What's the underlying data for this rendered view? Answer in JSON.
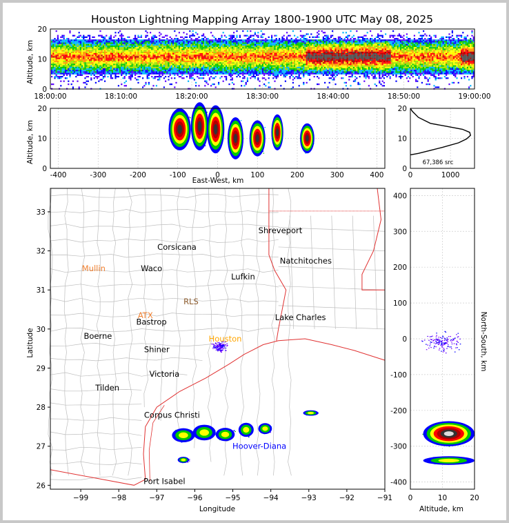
{
  "title": "Houston Lightning Mapping Array 1800-1900 UTC May 08, 2025",
  "colors": {
    "border": "#c8c8c8",
    "axis": "#000000",
    "state_line": "#e03030",
    "county_line": "#b4b4b4"
  },
  "chart_data": [
    {
      "id": "time-height",
      "type": "heatmap",
      "ylabel": "Altitude, km",
      "ylim": [
        0,
        20
      ],
      "yticks": [
        "0",
        "10",
        "20"
      ],
      "xticks": [
        "18:00:00",
        "18:10:00",
        "18:20:00",
        "18:30:00",
        "18:40:00",
        "18:50:00",
        "19:00:00"
      ],
      "xlim": [
        "18:00:00",
        "19:00:00"
      ],
      "band_altitude_km": [
        6,
        16
      ],
      "densest_intervals": [
        [
          "18:36:00",
          "18:48:00"
        ],
        [
          "18:58:00",
          "19:00:00"
        ]
      ]
    },
    {
      "id": "ew-altitude",
      "type": "heatmap",
      "xlabel": "East-West, km",
      "ylabel": "Altitude, km",
      "xlim": [
        -420,
        420
      ],
      "ylim": [
        0,
        20
      ],
      "xticks": [
        "-400",
        "-300",
        "-200",
        "-100",
        "0",
        "100",
        "200",
        "300",
        "400"
      ],
      "yticks": [
        "0",
        "10",
        "20"
      ],
      "cells": [
        {
          "x": -95,
          "z": 13,
          "rx": 28,
          "rz": 7
        },
        {
          "x": -45,
          "z": 14,
          "rx": 22,
          "rz": 8
        },
        {
          "x": -5,
          "z": 13,
          "rx": 22,
          "rz": 8
        },
        {
          "x": 45,
          "z": 10,
          "rx": 20,
          "rz": 7
        },
        {
          "x": 100,
          "z": 10,
          "rx": 20,
          "rz": 6
        },
        {
          "x": 150,
          "z": 12,
          "rx": 15,
          "rz": 6
        },
        {
          "x": 225,
          "z": 10,
          "rx": 18,
          "rz": 5
        }
      ]
    },
    {
      "id": "altitude-histogram",
      "type": "line",
      "annotation": "67,386 src",
      "xlim": [
        0,
        1600
      ],
      "ylim": [
        0,
        20
      ],
      "xticks": [
        "0",
        "1000"
      ],
      "yticks": [
        "0",
        "10",
        "20"
      ],
      "points": [
        [
          0,
          4.5
        ],
        [
          200,
          5.0
        ],
        [
          500,
          6.0
        ],
        [
          800,
          7.0
        ],
        [
          1200,
          8.5
        ],
        [
          1400,
          9.8
        ],
        [
          1500,
          11.0
        ],
        [
          1480,
          12.0
        ],
        [
          1300,
          13.0
        ],
        [
          900,
          14.0
        ],
        [
          500,
          15.0
        ],
        [
          200,
          17.0
        ],
        [
          50,
          19.0
        ],
        [
          0,
          20.0
        ]
      ]
    },
    {
      "id": "plan-view",
      "type": "scatter",
      "xlabel": "Longitude",
      "ylabel": "Latitude",
      "xlim": [
        -99.8,
        -91
      ],
      "ylim": [
        25.9,
        33.6
      ],
      "xticks": [
        "−99",
        "−98",
        "−97",
        "−96",
        "−95",
        "−94",
        "−93",
        "−92",
        "−91"
      ],
      "yticks": [
        "26",
        "27",
        "28",
        "29",
        "30",
        "31",
        "32",
        "33"
      ],
      "cities": [
        {
          "name": "Shreveport",
          "lon": -93.75,
          "lat": 32.52,
          "color": "#000000"
        },
        {
          "name": "Corsicana",
          "lon": -96.47,
          "lat": 32.1,
          "color": "#000000"
        },
        {
          "name": "Natchitoches",
          "lon": -93.08,
          "lat": 31.75,
          "color": "#000000"
        },
        {
          "name": "Mullin",
          "lon": -98.66,
          "lat": 31.55,
          "color": "#f08030"
        },
        {
          "name": "Waco",
          "lon": -97.14,
          "lat": 31.55,
          "color": "#000000"
        },
        {
          "name": "Lufkin",
          "lon": -94.73,
          "lat": 31.34,
          "color": "#000000"
        },
        {
          "name": "RLS",
          "lon": -96.1,
          "lat": 30.7,
          "color": "#8b5a2b"
        },
        {
          "name": "ATX",
          "lon": -97.3,
          "lat": 30.35,
          "color": "#f08030"
        },
        {
          "name": "Lake Charles",
          "lon": -93.22,
          "lat": 30.3,
          "color": "#000000"
        },
        {
          "name": "Bastrop",
          "lon": -97.14,
          "lat": 30.18,
          "color": "#000000"
        },
        {
          "name": "Boerne",
          "lon": -98.55,
          "lat": 29.82,
          "color": "#000000"
        },
        {
          "name": "Houston",
          "lon": -95.2,
          "lat": 29.75,
          "color": "#ffa500"
        },
        {
          "name": "Shiner",
          "lon": -97.0,
          "lat": 29.48,
          "color": "#000000"
        },
        {
          "name": "Victoria",
          "lon": -96.8,
          "lat": 28.85,
          "color": "#000000"
        },
        {
          "name": "Tilden",
          "lon": -98.3,
          "lat": 28.5,
          "color": "#000000"
        },
        {
          "name": "Corpus Christi",
          "lon": -96.6,
          "lat": 27.8,
          "color": "#000000"
        },
        {
          "name": "Hoover-Diana",
          "lon": -94.3,
          "lat": 27.0,
          "color": "#0000ff"
        },
        {
          "name": "Port Isabel",
          "lon": -96.8,
          "lat": 26.1,
          "color": "#000000"
        }
      ],
      "storms": [
        {
          "lon": -96.3,
          "lat": 27.28,
          "rlon": 0.3,
          "rlat": 0.18
        },
        {
          "lon": -95.75,
          "lat": 27.35,
          "rlon": 0.3,
          "rlat": 0.2
        },
        {
          "lon": -95.2,
          "lat": 27.3,
          "rlon": 0.25,
          "rlat": 0.17
        },
        {
          "lon": -94.65,
          "lat": 27.42,
          "rlon": 0.2,
          "rlat": 0.18
        },
        {
          "lon": -94.15,
          "lat": 27.45,
          "rlon": 0.18,
          "rlat": 0.14
        },
        {
          "lon": -92.95,
          "lat": 27.85,
          "rlon": 0.2,
          "rlat": 0.07
        },
        {
          "lon": -96.3,
          "lat": 26.65,
          "rlon": 0.15,
          "rlat": 0.08
        }
      ]
    },
    {
      "id": "ns-altitude",
      "type": "heatmap",
      "xlabel": "Altitude, km",
      "ylabel": "North-South, km",
      "xlim": [
        0,
        20
      ],
      "ylim": [
        -420,
        420
      ],
      "xticks": [
        "0",
        "10",
        "20"
      ],
      "yticks": [
        "-400",
        "-300",
        "-200",
        "-100",
        "0",
        "100",
        "200",
        "300",
        "400"
      ],
      "cells": [
        {
          "z": 12,
          "y": -265,
          "rz": 8,
          "ry": 35
        },
        {
          "z": 12,
          "y": -340,
          "rz": 8,
          "ry": 12
        }
      ]
    }
  ]
}
